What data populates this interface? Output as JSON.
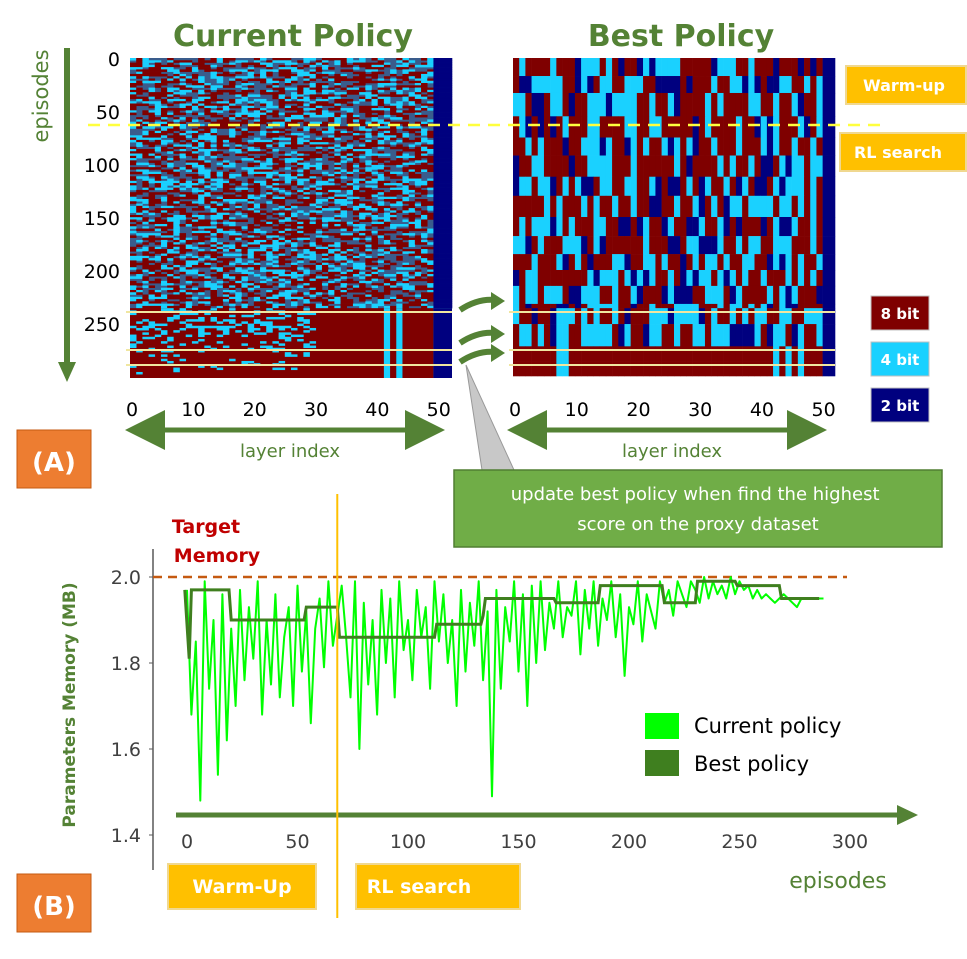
{
  "panel_a": {
    "badge": "(A)",
    "titles": {
      "current": "Current Policy",
      "best": "Best Policy"
    },
    "y_axis_label": "episodes",
    "y_ticks": [
      0,
      50,
      100,
      150,
      200,
      250
    ],
    "x_ticks": [
      0,
      10,
      20,
      30,
      40,
      50
    ],
    "x_axis_label_left": "layer index",
    "x_axis_label_right": "layer index",
    "phase_boxes": {
      "warmup": "Warm-up",
      "rl": "RL search"
    },
    "legend": [
      {
        "label": "8 bit",
        "color": "#7f0000"
      },
      {
        "label": "4 bit",
        "color": "#1ad1ff"
      },
      {
        "label": "2 bit",
        "color": "#00007f"
      }
    ],
    "callout": "update best policy when find the highest score on the proxy dataset",
    "colors": {
      "eight_bit": "#7f0000",
      "four_bit": "#1ad1ff",
      "two_bit": "#00007f",
      "mixed": "#3a5c8c",
      "phase_line": "#ffff3d",
      "arrow_green": "#548235"
    }
  },
  "panel_b": {
    "badge": "(B)",
    "target_label_line1": "Target",
    "target_label_line2": "Memory",
    "phase_boxes": {
      "warmup": "Warm-Up",
      "rl": "RL search"
    },
    "colors": {
      "current": "#00ff00",
      "best": "#3f7f1f",
      "target": "#c55a11",
      "divider": "#ffc000",
      "label_green": "#548235"
    }
  },
  "chart_data": {
    "type": "line",
    "title": "",
    "xlabel": "episodes",
    "ylabel": "Parameters Memory (MB)",
    "xlim": [
      -10,
      320
    ],
    "ylim": [
      1.37,
      2.05
    ],
    "x_ticks": [
      0,
      50,
      100,
      150,
      200,
      250,
      300
    ],
    "y_ticks": [
      1.4,
      1.6,
      1.8,
      2.0
    ],
    "target_memory": 2.0,
    "phase_boundary_episode": 68,
    "legend": {
      "position": "bottom-right"
    },
    "series": [
      {
        "name": "Current policy",
        "x": [
          0,
          2,
          4,
          6,
          8,
          10,
          12,
          14,
          16,
          18,
          20,
          22,
          24,
          26,
          28,
          30,
          32,
          34,
          36,
          38,
          40,
          42,
          44,
          46,
          48,
          50,
          52,
          54,
          56,
          58,
          60,
          62,
          64,
          66,
          68,
          70,
          72,
          74,
          76,
          78,
          80,
          82,
          84,
          86,
          88,
          90,
          92,
          94,
          96,
          98,
          100,
          102,
          104,
          106,
          108,
          110,
          112,
          114,
          116,
          118,
          120,
          122,
          124,
          126,
          128,
          130,
          132,
          134,
          136,
          138,
          140,
          142,
          144,
          146,
          148,
          150,
          152,
          154,
          156,
          158,
          160,
          162,
          164,
          166,
          168,
          170,
          172,
          174,
          176,
          178,
          180,
          182,
          184,
          186,
          188,
          190,
          192,
          194,
          196,
          198,
          200,
          202,
          204,
          206,
          208,
          210,
          212,
          214,
          216,
          218,
          220,
          222,
          224,
          226,
          228,
          230,
          232,
          234,
          236,
          238,
          240,
          242,
          244,
          246,
          248,
          250,
          252,
          254,
          256,
          258,
          260,
          262,
          264,
          266,
          268,
          270,
          272,
          274,
          276,
          278,
          280,
          282,
          284,
          286,
          288
        ],
        "values": [
          1.97,
          1.68,
          1.85,
          1.48,
          1.99,
          1.74,
          1.9,
          1.54,
          1.96,
          1.62,
          1.88,
          1.7,
          1.97,
          1.76,
          1.93,
          1.81,
          1.99,
          1.68,
          1.9,
          1.75,
          1.96,
          1.72,
          1.86,
          1.93,
          1.7,
          1.98,
          1.78,
          1.92,
          1.66,
          1.88,
          1.95,
          1.79,
          1.99,
          1.84,
          1.91,
          1.98,
          1.86,
          1.72,
          1.99,
          1.6,
          1.94,
          1.75,
          1.9,
          1.68,
          1.97,
          1.8,
          1.95,
          1.72,
          1.99,
          1.83,
          1.9,
          1.76,
          1.97,
          1.86,
          1.93,
          1.74,
          1.99,
          1.85,
          1.96,
          1.8,
          1.9,
          1.7,
          1.97,
          1.78,
          1.94,
          1.84,
          1.99,
          1.76,
          1.92,
          1.49,
          1.97,
          1.74,
          1.93,
          1.85,
          1.99,
          1.78,
          1.96,
          1.7,
          1.98,
          1.8,
          1.99,
          1.83,
          1.94,
          1.88,
          1.99,
          1.86,
          1.93,
          1.91,
          1.99,
          1.82,
          1.97,
          1.88,
          1.99,
          1.84,
          1.95,
          1.9,
          1.99,
          1.86,
          1.96,
          1.77,
          1.93,
          1.89,
          1.99,
          1.85,
          1.96,
          1.92,
          1.88,
          1.99,
          1.94,
          1.97,
          1.91,
          1.99,
          1.96,
          1.93,
          1.99,
          1.97,
          1.94,
          2.0,
          1.95,
          1.99,
          1.96,
          1.98,
          1.95,
          2.0,
          1.96,
          1.99,
          1.97,
          1.98,
          1.95,
          1.97,
          1.95,
          1.96,
          1.95,
          1.94,
          1.95,
          1.96,
          1.95,
          1.94,
          1.93,
          1.95,
          1.95,
          1.95,
          1.95,
          1.95,
          1.95
        ]
      },
      {
        "name": "Best policy",
        "x": [
          -1,
          1,
          2,
          4,
          19,
          20,
          21,
          53,
          54,
          55,
          68,
          69,
          70,
          112,
          113,
          133,
          134,
          135,
          166,
          167,
          168,
          186,
          187,
          188,
          215,
          216,
          217,
          230,
          231,
          232,
          248,
          249,
          250,
          268,
          269,
          270,
          286
        ],
        "values": [
          1.97,
          1.81,
          1.97,
          1.97,
          1.97,
          1.9,
          1.9,
          1.9,
          1.93,
          1.93,
          1.93,
          1.86,
          1.86,
          1.86,
          1.89,
          1.89,
          1.91,
          1.95,
          1.95,
          1.94,
          1.94,
          1.94,
          1.98,
          1.98,
          1.98,
          1.94,
          1.94,
          1.94,
          1.99,
          1.99,
          1.99,
          1.98,
          1.98,
          1.98,
          1.95,
          1.95,
          1.95
        ]
      }
    ]
  }
}
